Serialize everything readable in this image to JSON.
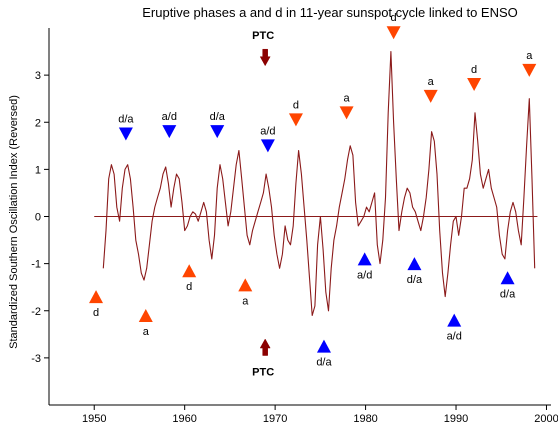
{
  "chart_data": {
    "type": "line",
    "title": "Eruptive phases a and d in 11-year sunspot cycle linked to ENSO",
    "xlabel": "",
    "ylabel": "Standardized Southern Oscillation Index  (Reversed)",
    "xlim": [
      1945,
      2000.5
    ],
    "ylim": [
      -4,
      4
    ],
    "x_ticks": [
      1950,
      1960,
      1970,
      1980,
      1990,
      2000
    ],
    "x_tick_labels": [
      "1950",
      "1960",
      "1970",
      "1980",
      "1990",
      "2000"
    ],
    "y_ticks": [
      -3,
      -2,
      -1,
      0,
      1,
      2,
      3
    ],
    "y_tick_labels": [
      "-3",
      "-2",
      "-1",
      "0",
      "1",
      "2",
      "3"
    ],
    "baseline": {
      "x0": 1950,
      "x1": 1999,
      "y": 0
    },
    "series": [
      {
        "color": "#8b1a1a",
        "x": [
          1951.0,
          1951.3,
          1951.6,
          1951.9,
          1952.2,
          1952.5,
          1952.8,
          1953.1,
          1953.4,
          1953.7,
          1954.0,
          1954.3,
          1954.6,
          1954.9,
          1955.2,
          1955.5,
          1955.8,
          1956.1,
          1956.4,
          1956.7,
          1957.0,
          1957.3,
          1957.6,
          1957.9,
          1958.2,
          1958.5,
          1958.8,
          1959.1,
          1959.4,
          1959.7,
          1960.0,
          1960.3,
          1960.6,
          1960.9,
          1961.2,
          1961.5,
          1961.8,
          1962.1,
          1962.4,
          1962.7,
          1963.0,
          1963.3,
          1963.6,
          1963.9,
          1964.2,
          1964.5,
          1964.8,
          1965.1,
          1965.4,
          1965.7,
          1966.0,
          1966.3,
          1966.6,
          1966.9,
          1967.2,
          1967.5,
          1967.8,
          1968.1,
          1968.4,
          1968.7,
          1969.0,
          1969.3,
          1969.6,
          1969.9,
          1970.2,
          1970.5,
          1970.8,
          1971.1,
          1971.4,
          1971.7,
          1972.0,
          1972.3,
          1972.6,
          1972.9,
          1973.2,
          1973.5,
          1973.8,
          1974.1,
          1974.4,
          1974.7,
          1975.0,
          1975.3,
          1975.6,
          1975.9,
          1976.2,
          1976.5,
          1976.8,
          1977.1,
          1977.4,
          1977.7,
          1978.0,
          1978.3,
          1978.6,
          1978.9,
          1979.2,
          1979.5,
          1979.8,
          1980.1,
          1980.4,
          1980.7,
          1981.0,
          1981.3,
          1981.6,
          1981.9,
          1982.2,
          1982.5,
          1982.8,
          1983.1,
          1983.4,
          1983.7,
          1984.0,
          1984.3,
          1984.6,
          1984.9,
          1985.2,
          1985.5,
          1985.8,
          1986.1,
          1986.4,
          1986.7,
          1987.0,
          1987.3,
          1987.6,
          1987.9,
          1988.2,
          1988.5,
          1988.8,
          1989.1,
          1989.4,
          1989.7,
          1990.0,
          1990.3,
          1990.6,
          1990.9,
          1991.2,
          1991.5,
          1991.8,
          1992.1,
          1992.4,
          1992.7,
          1993.0,
          1993.3,
          1993.6,
          1993.9,
          1994.2,
          1994.5,
          1994.8,
          1995.1,
          1995.4,
          1995.7,
          1996.0,
          1996.3,
          1996.6,
          1996.9,
          1997.2,
          1997.5,
          1997.8,
          1998.1,
          1998.4,
          1998.7
        ],
        "values": [
          -1.1,
          -0.3,
          0.8,
          1.1,
          0.9,
          0.2,
          -0.1,
          0.6,
          1.0,
          1.1,
          0.8,
          0.2,
          -0.5,
          -0.8,
          -1.2,
          -1.35,
          -1.1,
          -0.6,
          -0.1,
          0.2,
          0.4,
          0.6,
          0.9,
          1.05,
          0.7,
          0.2,
          0.6,
          0.9,
          0.8,
          0.3,
          -0.3,
          -0.2,
          0.0,
          0.1,
          0.05,
          -0.1,
          0.1,
          0.3,
          0.1,
          -0.5,
          -0.9,
          -0.4,
          0.6,
          1.1,
          0.8,
          0.3,
          -0.2,
          0.1,
          0.6,
          1.1,
          1.4,
          0.8,
          0.2,
          -0.4,
          -0.6,
          -0.3,
          -0.1,
          0.1,
          0.3,
          0.5,
          0.9,
          0.6,
          0.2,
          -0.4,
          -0.8,
          -1.1,
          -0.8,
          -0.2,
          -0.5,
          -0.6,
          -0.2,
          0.7,
          1.4,
          0.9,
          0.2,
          -0.5,
          -1.3,
          -2.1,
          -1.9,
          -0.6,
          0.0,
          -0.7,
          -1.6,
          -2.0,
          -1.1,
          -0.5,
          -0.2,
          0.2,
          0.5,
          0.8,
          1.2,
          1.5,
          1.3,
          0.3,
          -0.2,
          -0.1,
          0.0,
          0.2,
          0.1,
          0.3,
          0.5,
          -0.6,
          -1.0,
          -0.5,
          0.4,
          2.2,
          3.5,
          2.0,
          0.8,
          -0.3,
          0.1,
          0.4,
          0.6,
          0.5,
          0.2,
          0.1,
          -0.1,
          -0.3,
          0.0,
          0.4,
          1.0,
          1.8,
          1.6,
          0.9,
          -0.3,
          -1.2,
          -1.7,
          -1.2,
          -0.6,
          -0.1,
          0.0,
          -0.4,
          0.0,
          0.6,
          0.6,
          0.8,
          1.2,
          2.2,
          1.6,
          0.9,
          0.6,
          0.8,
          1.0,
          0.6,
          0.4,
          0.2,
          -0.4,
          -0.8,
          -0.9,
          -0.3,
          0.1,
          0.3,
          0.1,
          -0.3,
          -0.6,
          0.4,
          1.5,
          2.5,
          0.8,
          -1.1
        ]
      }
    ],
    "markers": [
      {
        "x": 1950.2,
        "y": -1.7,
        "dir": "up",
        "color": "#ff4500",
        "label": "d",
        "label_pos": "below"
      },
      {
        "x": 1953.5,
        "y": 1.75,
        "dir": "down",
        "color": "#0000ff",
        "label": "d/a",
        "label_pos": "above"
      },
      {
        "x": 1955.7,
        "y": -2.1,
        "dir": "up",
        "color": "#ff4500",
        "label": "a",
        "label_pos": "below"
      },
      {
        "x": 1958.3,
        "y": 1.8,
        "dir": "down",
        "color": "#0000ff",
        "label": "a/d",
        "label_pos": "above"
      },
      {
        "x": 1960.5,
        "y": -1.15,
        "dir": "up",
        "color": "#ff4500",
        "label": "d",
        "label_pos": "below"
      },
      {
        "x": 1963.6,
        "y": 1.8,
        "dir": "down",
        "color": "#0000ff",
        "label": "d/a",
        "label_pos": "above"
      },
      {
        "x": 1966.7,
        "y": -1.45,
        "dir": "up",
        "color": "#ff4500",
        "label": "a",
        "label_pos": "below"
      },
      {
        "x": 1969.2,
        "y": 1.5,
        "dir": "down",
        "color": "#0000ff",
        "label": "a/d",
        "label_pos": "above"
      },
      {
        "x": 1972.3,
        "y": 2.05,
        "dir": "down",
        "color": "#ff4500",
        "label": "d",
        "label_pos": "above"
      },
      {
        "x": 1975.4,
        "y": -2.75,
        "dir": "up",
        "color": "#0000ff",
        "label": "d/a",
        "label_pos": "below"
      },
      {
        "x": 1977.9,
        "y": 2.2,
        "dir": "down",
        "color": "#ff4500",
        "label": "a",
        "label_pos": "above"
      },
      {
        "x": 1979.9,
        "y": -0.9,
        "dir": "up",
        "color": "#0000ff",
        "label": "a/d",
        "label_pos": "below"
      },
      {
        "x": 1983.1,
        "y": 3.9,
        "dir": "down",
        "color": "#ff4500",
        "label": "d",
        "label_pos": "above"
      },
      {
        "x": 1985.4,
        "y": -1.0,
        "dir": "up",
        "color": "#0000ff",
        "label": "d/a",
        "label_pos": "below"
      },
      {
        "x": 1987.2,
        "y": 2.55,
        "dir": "down",
        "color": "#ff4500",
        "label": "a",
        "label_pos": "above"
      },
      {
        "x": 1989.8,
        "y": -2.2,
        "dir": "up",
        "color": "#0000ff",
        "label": "a/d",
        "label_pos": "below"
      },
      {
        "x": 1992.0,
        "y": 2.8,
        "dir": "down",
        "color": "#ff4500",
        "label": "d",
        "label_pos": "above"
      },
      {
        "x": 1995.7,
        "y": -1.3,
        "dir": "up",
        "color": "#0000ff",
        "label": "d/a",
        "label_pos": "below"
      },
      {
        "x": 1998.1,
        "y": 3.1,
        "dir": "down",
        "color": "#ff4500",
        "label": "a",
        "label_pos": "above"
      }
    ],
    "ptc_arrows": [
      {
        "x": 1968.9,
        "label": "PTC",
        "dir": "down",
        "tip_y": 3.2,
        "tail_y": 3.55
      },
      {
        "x": 1968.9,
        "label": "PTC",
        "dir": "up",
        "tip_y": -2.6,
        "tail_y": -2.95
      }
    ]
  }
}
